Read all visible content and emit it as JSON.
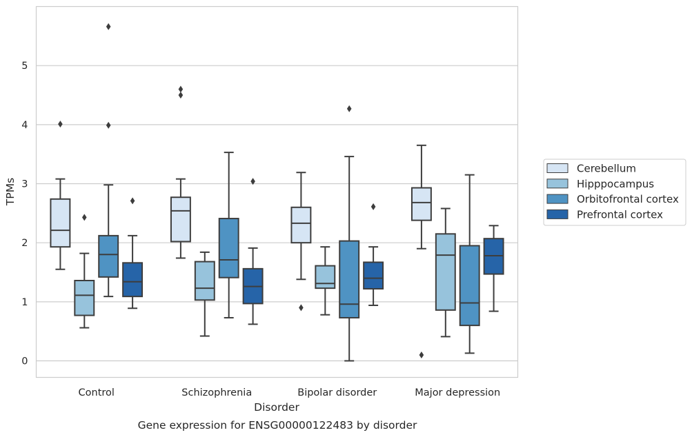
{
  "chart_data": {
    "type": "boxplot",
    "xlabel": "Disorder",
    "ylabel": "TPMs",
    "caption": "Gene expression for ENSG00000122483 by disorder",
    "categories": [
      "Control",
      "Schizophrenia",
      "Bipolar disorder",
      "Major depression"
    ],
    "ylim": [
      -0.28,
      6.0
    ],
    "yticks": [
      "0",
      "1",
      "2",
      "3",
      "4",
      "5"
    ],
    "grid": "horizontal",
    "legend_position": "right",
    "series": [
      {
        "name": "Cerebellum",
        "color": "#d6e5f4",
        "boxes": [
          {
            "whislo": 1.55,
            "q1": 1.93,
            "med": 2.21,
            "q3": 2.74,
            "whishi": 3.08,
            "fliers": [
              4.01
            ]
          },
          {
            "whislo": 1.74,
            "q1": 2.02,
            "med": 2.54,
            "q3": 2.77,
            "whishi": 3.08,
            "fliers": [
              4.5,
              4.6
            ]
          },
          {
            "whislo": 1.38,
            "q1": 2.0,
            "med": 2.33,
            "q3": 2.6,
            "whishi": 3.19,
            "fliers": [
              0.9
            ]
          },
          {
            "whislo": 1.9,
            "q1": 2.38,
            "med": 2.68,
            "q3": 2.93,
            "whishi": 3.65,
            "fliers": [
              0.1
            ]
          }
        ]
      },
      {
        "name": "Hipppocampus",
        "color": "#97c3dc",
        "boxes": [
          {
            "whislo": 0.56,
            "q1": 0.77,
            "med": 1.11,
            "q3": 1.36,
            "whishi": 1.82,
            "fliers": [
              2.43
            ]
          },
          {
            "whislo": 0.42,
            "q1": 1.03,
            "med": 1.23,
            "q3": 1.68,
            "whishi": 1.84,
            "fliers": []
          },
          {
            "whislo": 0.78,
            "q1": 1.23,
            "med": 1.31,
            "q3": 1.61,
            "whishi": 1.93,
            "fliers": []
          },
          {
            "whislo": 0.41,
            "q1": 0.86,
            "med": 1.79,
            "q3": 2.15,
            "whishi": 2.58,
            "fliers": []
          }
        ]
      },
      {
        "name": "Orbitofrontal cortex",
        "color": "#4f93c3",
        "boxes": [
          {
            "whislo": 1.09,
            "q1": 1.42,
            "med": 1.8,
            "q3": 2.12,
            "whishi": 2.98,
            "fliers": [
              3.99,
              5.66
            ]
          },
          {
            "whislo": 0.73,
            "q1": 1.41,
            "med": 1.71,
            "q3": 2.41,
            "whishi": 3.53,
            "fliers": []
          },
          {
            "whislo": 0.0,
            "q1": 0.73,
            "med": 0.96,
            "q3": 2.03,
            "whishi": 3.46,
            "fliers": [
              4.27
            ]
          },
          {
            "whislo": 0.13,
            "q1": 0.6,
            "med": 0.98,
            "q3": 1.95,
            "whishi": 3.15,
            "fliers": []
          }
        ]
      },
      {
        "name": "Prefrontal cortex",
        "color": "#2664a8",
        "boxes": [
          {
            "whislo": 0.89,
            "q1": 1.09,
            "med": 1.34,
            "q3": 1.66,
            "whishi": 2.12,
            "fliers": [
              2.71
            ]
          },
          {
            "whislo": 0.62,
            "q1": 0.97,
            "med": 1.26,
            "q3": 1.56,
            "whishi": 1.91,
            "fliers": [
              3.04
            ]
          },
          {
            "whislo": 0.94,
            "q1": 1.22,
            "med": 1.4,
            "q3": 1.67,
            "whishi": 1.93,
            "fliers": [
              2.61
            ]
          },
          {
            "whislo": 0.84,
            "q1": 1.47,
            "med": 1.78,
            "q3": 2.07,
            "whishi": 2.29,
            "fliers": []
          }
        ]
      }
    ]
  }
}
